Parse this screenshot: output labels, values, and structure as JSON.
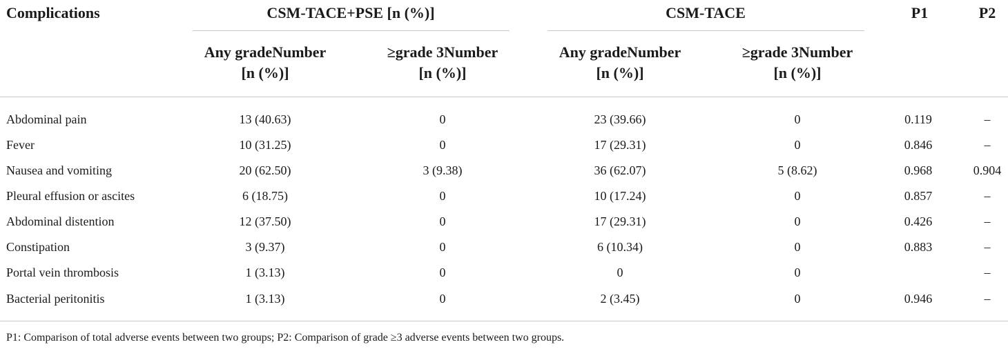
{
  "table": {
    "header": {
      "complications": "Complications",
      "group1": "CSM-TACE+PSE [n (%)]",
      "group2": "CSM-TACE",
      "p1": "P1",
      "p2": "P2"
    },
    "subheaders": {
      "g1_any_line1": "Any gradeNumber",
      "g1_any_line2": "[n (%)]",
      "g1_ge3_line1": "≥grade 3Number",
      "g1_ge3_line2": "[n (%)]",
      "g2_any_line1": "Any gradeNumber",
      "g2_any_line2": "[n (%)]",
      "g2_ge3_line1": "≥grade 3Number",
      "g2_ge3_line2": "[n (%)]"
    },
    "rows": [
      {
        "name": "Abdominal pain",
        "g1_any": "13 (40.63)",
        "g1_ge3": "0",
        "g2_any": "23 (39.66)",
        "g2_ge3": "0",
        "p1": "0.119",
        "p2": "–"
      },
      {
        "name": "Fever",
        "g1_any": "10 (31.25)",
        "g1_ge3": "0",
        "g2_any": "17 (29.31)",
        "g2_ge3": "0",
        "p1": "0.846",
        "p2": "–"
      },
      {
        "name": "Nausea and vomiting",
        "g1_any": "20 (62.50)",
        "g1_ge3": "3 (9.38)",
        "g2_any": "36 (62.07)",
        "g2_ge3": "5 (8.62)",
        "p1": "0.968",
        "p2": "0.904"
      },
      {
        "name": "Pleural effusion or ascites",
        "g1_any": "6 (18.75)",
        "g1_ge3": "0",
        "g2_any": "10 (17.24)",
        "g2_ge3": "0",
        "p1": "0.857",
        "p2": "–"
      },
      {
        "name": "Abdominal distention",
        "g1_any": "12 (37.50)",
        "g1_ge3": "0",
        "g2_any": "17 (29.31)",
        "g2_ge3": "0",
        "p1": "0.426",
        "p2": "–"
      },
      {
        "name": "Constipation",
        "g1_any": "3 (9.37)",
        "g1_ge3": "0",
        "g2_any": "6 (10.34)",
        "g2_ge3": "0",
        "p1": "0.883",
        "p2": "–"
      },
      {
        "name": "Portal vein thrombosis",
        "g1_any": "1 (3.13)",
        "g1_ge3": "0",
        "g2_any": "0",
        "g2_ge3": "0",
        "p1": "",
        "p2": "–"
      },
      {
        "name": "Bacterial peritonitis",
        "g1_any": "1 (3.13)",
        "g1_ge3": "0",
        "g2_any": "2 (3.45)",
        "g2_ge3": "0",
        "p1": "0.946",
        "p2": "–"
      }
    ],
    "footnote": "P1: Comparison of total adverse events between two groups; P2: Comparison of grade ≥3 adverse events between two groups."
  }
}
